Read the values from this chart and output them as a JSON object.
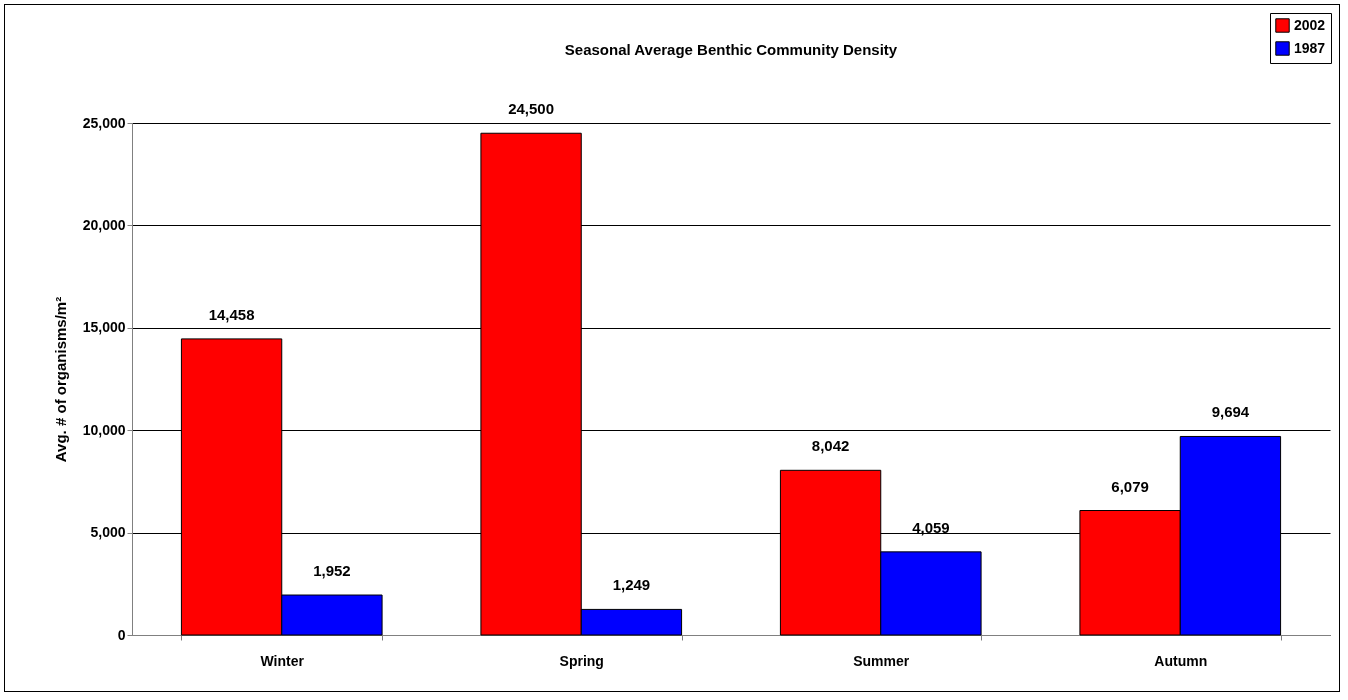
{
  "chart_data": {
    "type": "bar",
    "title": "Seasonal Average Benthic Community Density",
    "ylabel": "Avg. # of organisms/m²",
    "categories": [
      "Winter",
      "Spring",
      "Summer",
      "Autumn"
    ],
    "series": [
      {
        "name": "2002",
        "color": "#ff0000",
        "values": [
          14458,
          24500,
          8042,
          6079
        ],
        "value_labels": [
          "14,458",
          "24,500",
          "8,042",
          "6,079"
        ]
      },
      {
        "name": "1987",
        "color": "#0000ff",
        "values": [
          1952,
          1249,
          4059,
          9694
        ],
        "value_labels": [
          "1,952",
          "1,249",
          "4,059",
          "9,694"
        ]
      }
    ],
    "ylim": [
      0,
      25000
    ],
    "yticks": [
      {
        "value": 0,
        "label": "0"
      },
      {
        "value": 5000,
        "label": "5,000"
      },
      {
        "value": 10000,
        "label": "10,000"
      },
      {
        "value": 15000,
        "label": "15,000"
      },
      {
        "value": 20000,
        "label": "20,000"
      },
      {
        "value": 25000,
        "label": "25,000"
      }
    ],
    "grid": "y",
    "legend": "top right"
  }
}
